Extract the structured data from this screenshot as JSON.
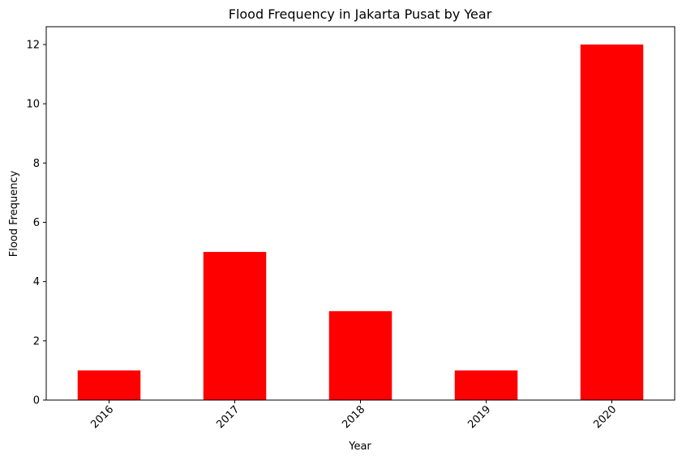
{
  "chart_data": {
    "type": "bar",
    "title": "Flood Frequency in Jakarta Pusat by Year",
    "xlabel": "Year",
    "ylabel": "Flood Frequency",
    "categories": [
      "2016",
      "2017",
      "2018",
      "2019",
      "2020"
    ],
    "values": [
      1,
      5,
      3,
      1,
      12
    ],
    "ylim": [
      0,
      12.6
    ],
    "yticks": [
      0,
      2,
      4,
      6,
      8,
      10,
      12
    ],
    "x_tick_rotation_deg": 45,
    "grid": false,
    "legend": "none",
    "colors": {
      "bar": "#ff0000",
      "axis": "#000000",
      "background": "#ffffff"
    }
  }
}
